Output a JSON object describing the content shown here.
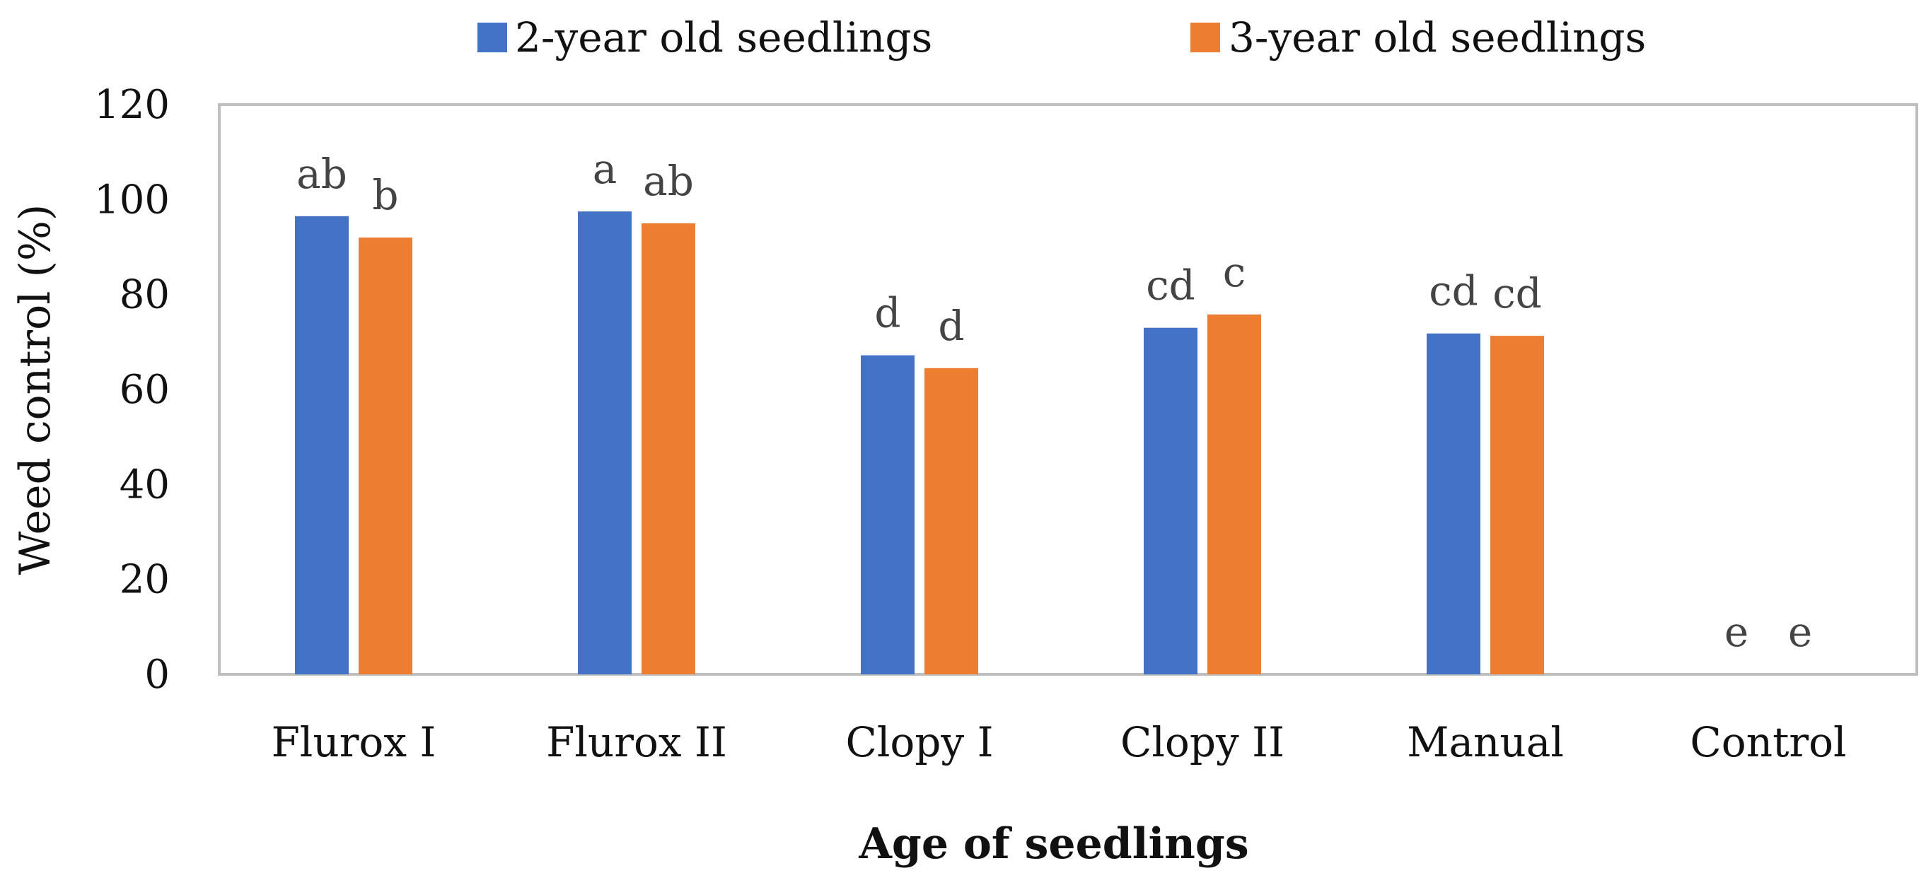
{
  "chart_data": {
    "type": "bar",
    "title": "",
    "xlabel": "Age of seedlings",
    "ylabel": "Weed control (%)",
    "ylim": [
      0,
      120
    ],
    "yticks": [
      0,
      20,
      40,
      60,
      80,
      100,
      120
    ],
    "grid": false,
    "legend_position": "top-center",
    "categories": [
      "Flurox I",
      "Flurox II",
      "Clopy I",
      "Clopy II",
      "Manual",
      "Control"
    ],
    "series": [
      {
        "name": "2-year old seedlings",
        "color": "#4472C4",
        "values": [
          96.5,
          97.5,
          67.2,
          73.0,
          71.8,
          0
        ],
        "labels": [
          "ab",
          "a",
          "d",
          "cd",
          "cd",
          "e"
        ]
      },
      {
        "name": "3-year old seedlings",
        "color": "#ED7D31",
        "values": [
          92.0,
          95.0,
          64.5,
          75.8,
          71.3,
          0
        ],
        "labels": [
          "b",
          "ab",
          "d",
          "c",
          "cd",
          "e"
        ]
      }
    ]
  }
}
